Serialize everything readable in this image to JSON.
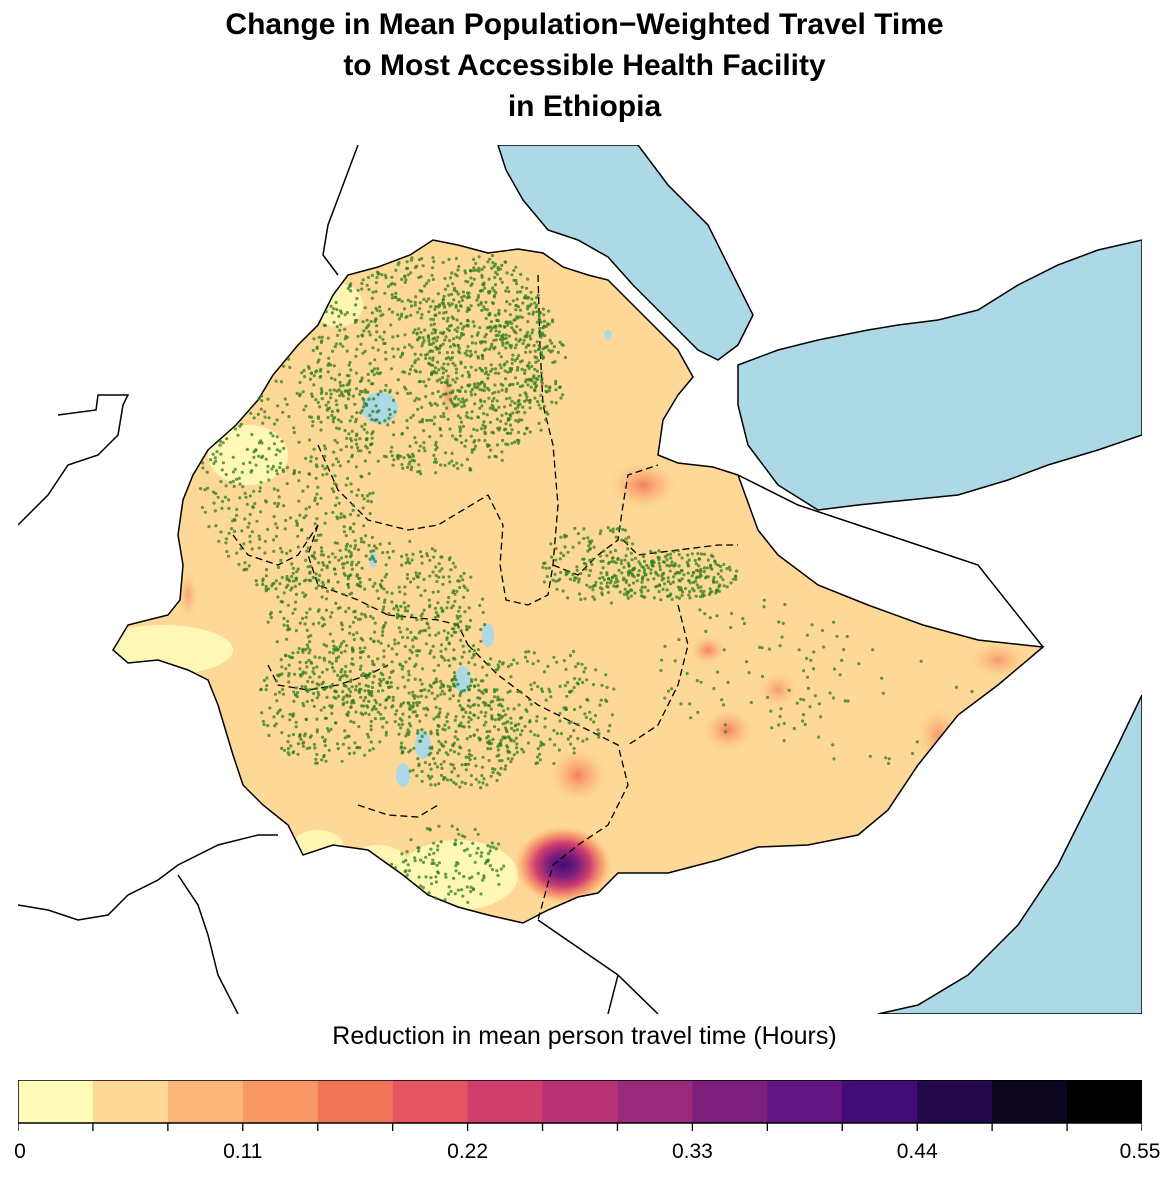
{
  "title": {
    "line1": "Change in Mean Population−Weighted Travel Time",
    "line2": "to Most Accessible Health Facility",
    "line3": "in Ethiopia"
  },
  "legend": {
    "title": "Reduction in mean person travel time (Hours)",
    "min": 0,
    "max": 0.55,
    "bins": 15,
    "colors": [
      "#fffbb8",
      "#fdd896",
      "#fdb67a",
      "#f99866",
      "#f37559",
      "#e45461",
      "#d03e6e",
      "#b83276",
      "#98297b",
      "#7b1e7c",
      "#601580",
      "#410c76",
      "#22084a",
      "#0c0620",
      "#000000"
    ],
    "tick_labels": [
      "0",
      "0.11",
      "0.22",
      "0.33",
      "0.44",
      "0.55"
    ],
    "tick_values": [
      0,
      0.11,
      0.22,
      0.33,
      0.44,
      0.55
    ]
  },
  "colors": {
    "water": "#add8e6",
    "base_fill": "#fdd896",
    "low_fill": "#fffbb8",
    "facility_points": "#2e7d1e"
  },
  "icons": {
    "facility_marker": "dot-icon"
  }
}
